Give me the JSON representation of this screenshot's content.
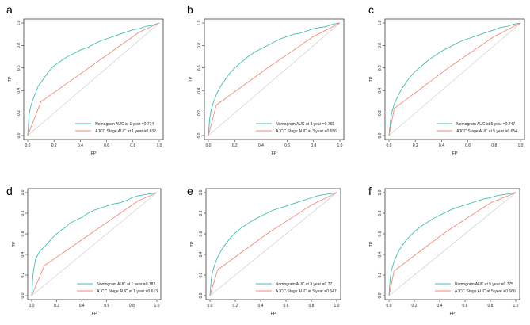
{
  "colors": {
    "nomogram": "#3fbfb0",
    "ajcc": "#f28a7a",
    "diagonal": "#c8c8c8",
    "axis": "#000000"
  },
  "chart_data": [
    {
      "type": "line",
      "panel": "a",
      "xlabel": "FP",
      "ylabel": "TP",
      "xlim": [
        0,
        1
      ],
      "ylim": [
        0,
        1
      ],
      "ticks": [
        "0.0",
        "0.2",
        "0.4",
        "0.6",
        "0.8",
        "1.0"
      ],
      "series": [
        {
          "name": "Nomogram",
          "legend": "Nomogram   AUC at 1 year =0.774",
          "auc": 0.774,
          "x": [
            0,
            0.01,
            0.02,
            0.04,
            0.06,
            0.08,
            0.1,
            0.13,
            0.16,
            0.2,
            0.25,
            0.3,
            0.35,
            0.4,
            0.45,
            0.5,
            0.55,
            0.6,
            0.65,
            0.7,
            0.75,
            0.8,
            0.85,
            0.9,
            0.95,
            1.0
          ],
          "y": [
            0,
            0.18,
            0.25,
            0.32,
            0.38,
            0.44,
            0.47,
            0.52,
            0.57,
            0.62,
            0.66,
            0.7,
            0.73,
            0.76,
            0.78,
            0.81,
            0.84,
            0.86,
            0.88,
            0.9,
            0.92,
            0.94,
            0.95,
            0.97,
            0.98,
            1.0
          ]
        },
        {
          "name": "AJCC.Stage",
          "legend": "AJCC.Stage AUC at 1 year =0.632",
          "auc": 0.632,
          "x": [
            0,
            0.1,
            0.85,
            1.0
          ],
          "y": [
            0,
            0.3,
            0.92,
            1.0
          ]
        }
      ]
    },
    {
      "type": "line",
      "panel": "b",
      "xlabel": "FP",
      "ylabel": "TP",
      "xlim": [
        0,
        1
      ],
      "ylim": [
        0,
        1
      ],
      "ticks": [
        "0.0",
        "0.2",
        "0.4",
        "0.6",
        "0.8",
        "1.0"
      ],
      "series": [
        {
          "name": "Nomogram",
          "legend": "Nomogram   AUC at 3 year =0.765",
          "auc": 0.765,
          "x": [
            0,
            0.01,
            0.02,
            0.04,
            0.06,
            0.08,
            0.1,
            0.13,
            0.16,
            0.2,
            0.25,
            0.3,
            0.35,
            0.4,
            0.45,
            0.5,
            0.55,
            0.6,
            0.65,
            0.7,
            0.75,
            0.8,
            0.85,
            0.9,
            0.95,
            1.0
          ],
          "y": [
            0,
            0.15,
            0.22,
            0.3,
            0.36,
            0.41,
            0.45,
            0.5,
            0.55,
            0.6,
            0.65,
            0.7,
            0.74,
            0.77,
            0.8,
            0.83,
            0.86,
            0.88,
            0.9,
            0.91,
            0.93,
            0.95,
            0.96,
            0.97,
            0.99,
            1.0
          ]
        },
        {
          "name": "AJCC.Stage",
          "legend": "AJCC.Stage AUC at 3 year =0.656",
          "auc": 0.656,
          "x": [
            0,
            0.06,
            0.45,
            0.8,
            1.0
          ],
          "y": [
            0,
            0.27,
            0.6,
            0.88,
            1.0
          ]
        }
      ]
    },
    {
      "type": "line",
      "panel": "c",
      "xlabel": "FP",
      "ylabel": "TP",
      "xlim": [
        0,
        1
      ],
      "ylim": [
        0,
        1
      ],
      "ticks": [
        "0.0",
        "0.2",
        "0.4",
        "0.6",
        "0.8",
        "1.0"
      ],
      "series": [
        {
          "name": "Nomogram",
          "legend": "Nomogram   AUC at 5 year =0.747",
          "auc": 0.747,
          "x": [
            0,
            0.01,
            0.02,
            0.04,
            0.06,
            0.08,
            0.1,
            0.13,
            0.16,
            0.2,
            0.25,
            0.3,
            0.35,
            0.4,
            0.45,
            0.5,
            0.55,
            0.6,
            0.65,
            0.7,
            0.75,
            0.8,
            0.85,
            0.9,
            0.95,
            1.0
          ],
          "y": [
            0,
            0.12,
            0.2,
            0.28,
            0.33,
            0.38,
            0.42,
            0.47,
            0.52,
            0.57,
            0.62,
            0.67,
            0.71,
            0.75,
            0.78,
            0.81,
            0.84,
            0.86,
            0.88,
            0.9,
            0.92,
            0.94,
            0.96,
            0.97,
            0.99,
            1.0
          ]
        },
        {
          "name": "AJCC.Stage",
          "legend": "AJCC.Stage AUC at 5 year =0.654",
          "auc": 0.654,
          "x": [
            0,
            0.04,
            0.45,
            0.8,
            1.0
          ],
          "y": [
            0,
            0.24,
            0.6,
            0.88,
            1.0
          ]
        }
      ]
    },
    {
      "type": "line",
      "panel": "d",
      "xlabel": "FP",
      "ylabel": "TP",
      "xlim": [
        0,
        1
      ],
      "ylim": [
        0,
        1
      ],
      "ticks": [
        "0.0",
        "0.2",
        "0.4",
        "0.6",
        "0.8",
        "1.0"
      ],
      "series": [
        {
          "name": "Nomogram",
          "legend": "Nomogram   AUC at 1 year =0.782",
          "auc": 0.782,
          "x": [
            0,
            0.01,
            0.02,
            0.03,
            0.05,
            0.07,
            0.1,
            0.12,
            0.15,
            0.18,
            0.2,
            0.24,
            0.28,
            0.3,
            0.35,
            0.4,
            0.45,
            0.5,
            0.55,
            0.6,
            0.65,
            0.7,
            0.75,
            0.8,
            0.85,
            0.9,
            0.95,
            1.0
          ],
          "y": [
            0,
            0.2,
            0.28,
            0.35,
            0.4,
            0.44,
            0.47,
            0.5,
            0.54,
            0.58,
            0.6,
            0.64,
            0.67,
            0.7,
            0.73,
            0.76,
            0.8,
            0.83,
            0.85,
            0.87,
            0.89,
            0.9,
            0.92,
            0.95,
            0.97,
            0.98,
            0.99,
            1.0
          ]
        },
        {
          "name": "AJCC.Stage",
          "legend": "AJCC.Stage AUC at 1 year =0.613",
          "auc": 0.613,
          "x": [
            0,
            0.1,
            0.85,
            1.0
          ],
          "y": [
            0,
            0.29,
            0.92,
            1.0
          ]
        }
      ]
    },
    {
      "type": "line",
      "panel": "e",
      "xlabel": "FP",
      "ylabel": "TP",
      "xlim": [
        0,
        1
      ],
      "ylim": [
        0,
        1
      ],
      "ticks": [
        "0.0",
        "0.2",
        "0.4",
        "0.6",
        "0.8",
        "1.0"
      ],
      "series": [
        {
          "name": "Nomogram",
          "legend": "Nomogram   AUC at 3 year =0.77",
          "auc": 0.77,
          "x": [
            0,
            0.01,
            0.02,
            0.04,
            0.06,
            0.08,
            0.1,
            0.13,
            0.16,
            0.2,
            0.25,
            0.3,
            0.35,
            0.4,
            0.45,
            0.5,
            0.55,
            0.6,
            0.65,
            0.7,
            0.75,
            0.8,
            0.85,
            0.9,
            0.95,
            1.0
          ],
          "y": [
            0,
            0.16,
            0.23,
            0.31,
            0.37,
            0.42,
            0.46,
            0.51,
            0.56,
            0.61,
            0.66,
            0.7,
            0.74,
            0.77,
            0.8,
            0.83,
            0.85,
            0.87,
            0.89,
            0.91,
            0.93,
            0.95,
            0.97,
            0.98,
            0.99,
            1.0
          ]
        },
        {
          "name": "AJCC.Stage",
          "legend": "AJCC.Stage AUC at 3 year =0.647",
          "auc": 0.647,
          "x": [
            0,
            0.06,
            0.45,
            0.8,
            1.0
          ],
          "y": [
            0,
            0.25,
            0.6,
            0.88,
            1.0
          ]
        }
      ]
    },
    {
      "type": "line",
      "panel": "f",
      "xlabel": "FP",
      "ylabel": "TP",
      "xlim": [
        0,
        1
      ],
      "ylim": [
        0,
        1
      ],
      "ticks": [
        "0.0",
        "0.2",
        "0.4",
        "0.6",
        "0.8",
        "1.0"
      ],
      "series": [
        {
          "name": "Nomogram",
          "legend": "Nomogram   AUC at 5 year =0.775",
          "auc": 0.775,
          "x": [
            0,
            0.01,
            0.02,
            0.04,
            0.06,
            0.08,
            0.1,
            0.13,
            0.16,
            0.2,
            0.25,
            0.3,
            0.35,
            0.4,
            0.45,
            0.5,
            0.55,
            0.6,
            0.65,
            0.7,
            0.75,
            0.8,
            0.85,
            0.9,
            0.95,
            1.0
          ],
          "y": [
            0,
            0.17,
            0.25,
            0.33,
            0.39,
            0.44,
            0.48,
            0.53,
            0.57,
            0.62,
            0.67,
            0.71,
            0.75,
            0.78,
            0.81,
            0.84,
            0.86,
            0.88,
            0.9,
            0.92,
            0.94,
            0.95,
            0.97,
            0.98,
            0.99,
            1.0
          ]
        },
        {
          "name": "AJCC.Stage",
          "legend": "AJCC.Stage AUC at 5 year =0.666",
          "auc": 0.666,
          "x": [
            0,
            0.04,
            0.45,
            0.8,
            1.0
          ],
          "y": [
            0,
            0.24,
            0.62,
            0.9,
            1.0
          ]
        }
      ]
    }
  ]
}
